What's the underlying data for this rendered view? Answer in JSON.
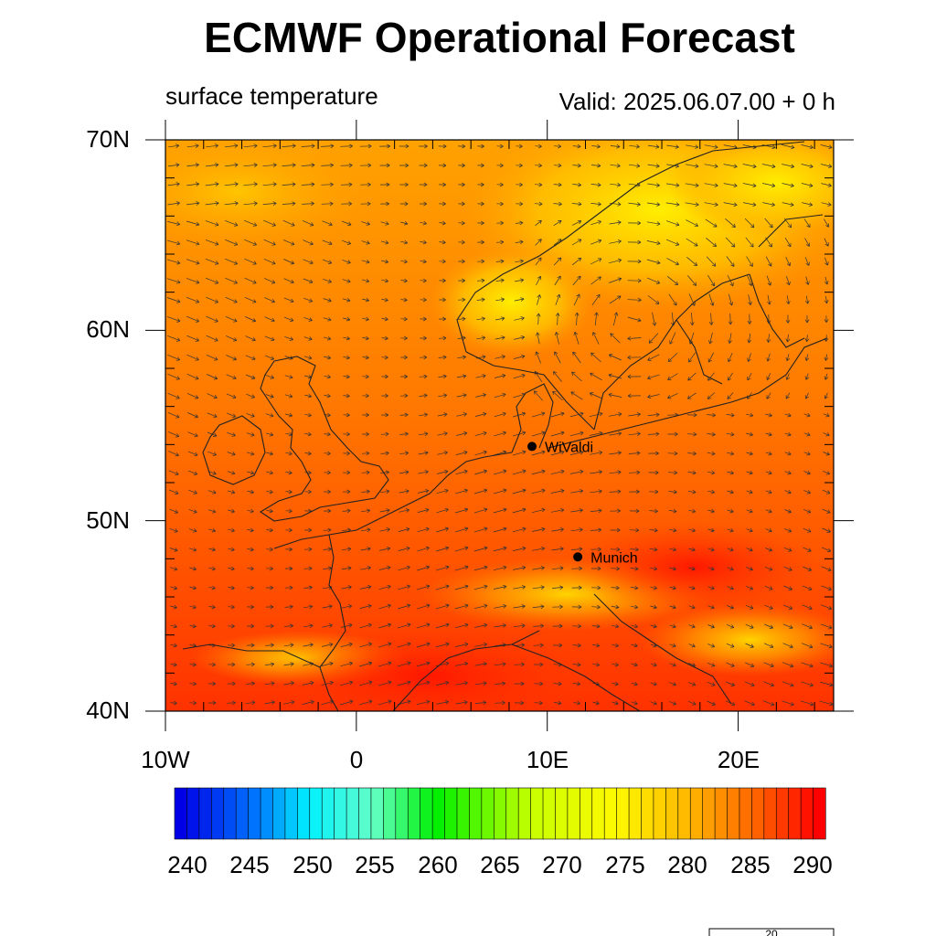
{
  "header": {
    "title": "ECMWF Operational Forecast",
    "variable": "surface temperature",
    "valid": "Valid: 2025.06.07.00 + 0 h"
  },
  "map": {
    "lat_labels": [
      "70N",
      "60N",
      "50N",
      "40N"
    ],
    "lon_labels": [
      "10W",
      "0",
      "10E",
      "20E"
    ],
    "extent": {
      "lon_min": -10,
      "lon_max": 25,
      "lat_min": 40,
      "lat_max": 70
    },
    "field_colors": {
      "cold": "#ffe800",
      "mid": "#ffa000",
      "warm": "#ff5a00",
      "hot": "#ff1a00"
    },
    "cities": [
      {
        "name": "WiValdi",
        "lon": 9.2,
        "lat": 53.9
      },
      {
        "name": "Munich",
        "lon": 11.6,
        "lat": 48.1
      }
    ]
  },
  "colorbar": {
    "labels": [
      "240",
      "245",
      "250",
      "255",
      "260",
      "265",
      "270",
      "275",
      "280",
      "285",
      "290"
    ],
    "min": 239,
    "max": 291,
    "step": 1
  },
  "vector_key": {
    "label": "20"
  }
}
